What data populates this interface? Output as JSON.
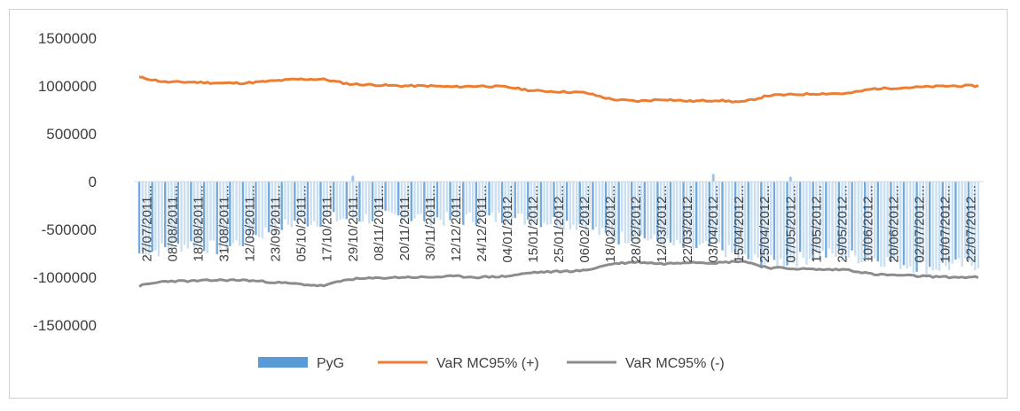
{
  "chart_data": {
    "type": "bar+line",
    "title": "",
    "xlabel": "",
    "ylabel": "",
    "ylim": [
      -1500000,
      1500000
    ],
    "yticks": [
      1500000,
      1000000,
      500000,
      0,
      -500000,
      -1000000,
      -1500000
    ],
    "ytick_labels": [
      "1500000",
      "1000000",
      "500000",
      "0",
      "-500000",
      "-1000000",
      "-1500000"
    ],
    "grid": false,
    "legend_position": "bottom",
    "x_labels": [
      "27/07/2011...",
      "08/08/2011...",
      "18/08/2011...",
      "31/08/2011...",
      "12/09/2011...",
      "23/09/2011...",
      "05/10/2011...",
      "17/10/2011...",
      "29/10/2011...",
      "08/11/2011...",
      "20/11/2011...",
      "30/11/2011...",
      "12/12/2011...",
      "24/12/2011...",
      "04/01/2012...",
      "15/01/2012...",
      "25/01/2012...",
      "06/02/2012...",
      "18/02/2012...",
      "28/02/2012...",
      "12/03/2012...",
      "22/03/2012...",
      "03/04/2012...",
      "15/04/2012...",
      "25/04/2012...",
      "07/05/2012...",
      "17/05/2012...",
      "29/05/2012...",
      "10/06/2012...",
      "20/06/2012...",
      "02/07/2012...",
      "10/07/2012...",
      "22/07/2012..."
    ],
    "series": [
      {
        "name": "PyG",
        "type": "bar",
        "color": "#5b9bd5",
        "approx_values_at_labels": [
          -750000,
          -700000,
          -650000,
          -700000,
          -620000,
          -500000,
          -420000,
          -400000,
          -380000,
          -380000,
          -360000,
          -380000,
          -400000,
          -380000,
          -380000,
          -400000,
          -420000,
          -450000,
          -600000,
          -560000,
          -650000,
          -700000,
          -680000,
          -800000,
          -850000,
          -820000,
          -760000,
          -780000,
          -800000,
          -850000,
          -900000,
          -880000,
          -860000
        ],
        "spikes_above_zero": [
          {
            "x": "29/10/2011...",
            "value": 60000
          },
          {
            "x": "03/04/2012...",
            "value": 80000
          },
          {
            "x": "07/05/2012...",
            "value": 50000
          }
        ]
      },
      {
        "name": "VaR  MC95% (+)",
        "type": "line",
        "color": "#ed7d31",
        "approx_values_at_labels": [
          1090000,
          1040000,
          1040000,
          1030000,
          1030000,
          1050000,
          1070000,
          1070000,
          1020000,
          1010000,
          1000000,
          1000000,
          990000,
          1000000,
          990000,
          950000,
          940000,
          930000,
          860000,
          840000,
          860000,
          840000,
          850000,
          830000,
          900000,
          910000,
          920000,
          920000,
          970000,
          980000,
          990000,
          1000000,
          1000000
        ]
      },
      {
        "name": "VaR  MC95% (-)",
        "type": "line",
        "color": "#8c8c8c",
        "approx_values_at_labels": [
          -1090000,
          -1040000,
          -1040000,
          -1030000,
          -1030000,
          -1050000,
          -1070000,
          -1090000,
          -1020000,
          -1010000,
          -1000000,
          -1000000,
          -990000,
          -1000000,
          -990000,
          -950000,
          -940000,
          -930000,
          -860000,
          -840000,
          -860000,
          -840000,
          -850000,
          -830000,
          -900000,
          -910000,
          -920000,
          -920000,
          -970000,
          -980000,
          -990000,
          -1000000,
          -1000000
        ]
      }
    ]
  }
}
